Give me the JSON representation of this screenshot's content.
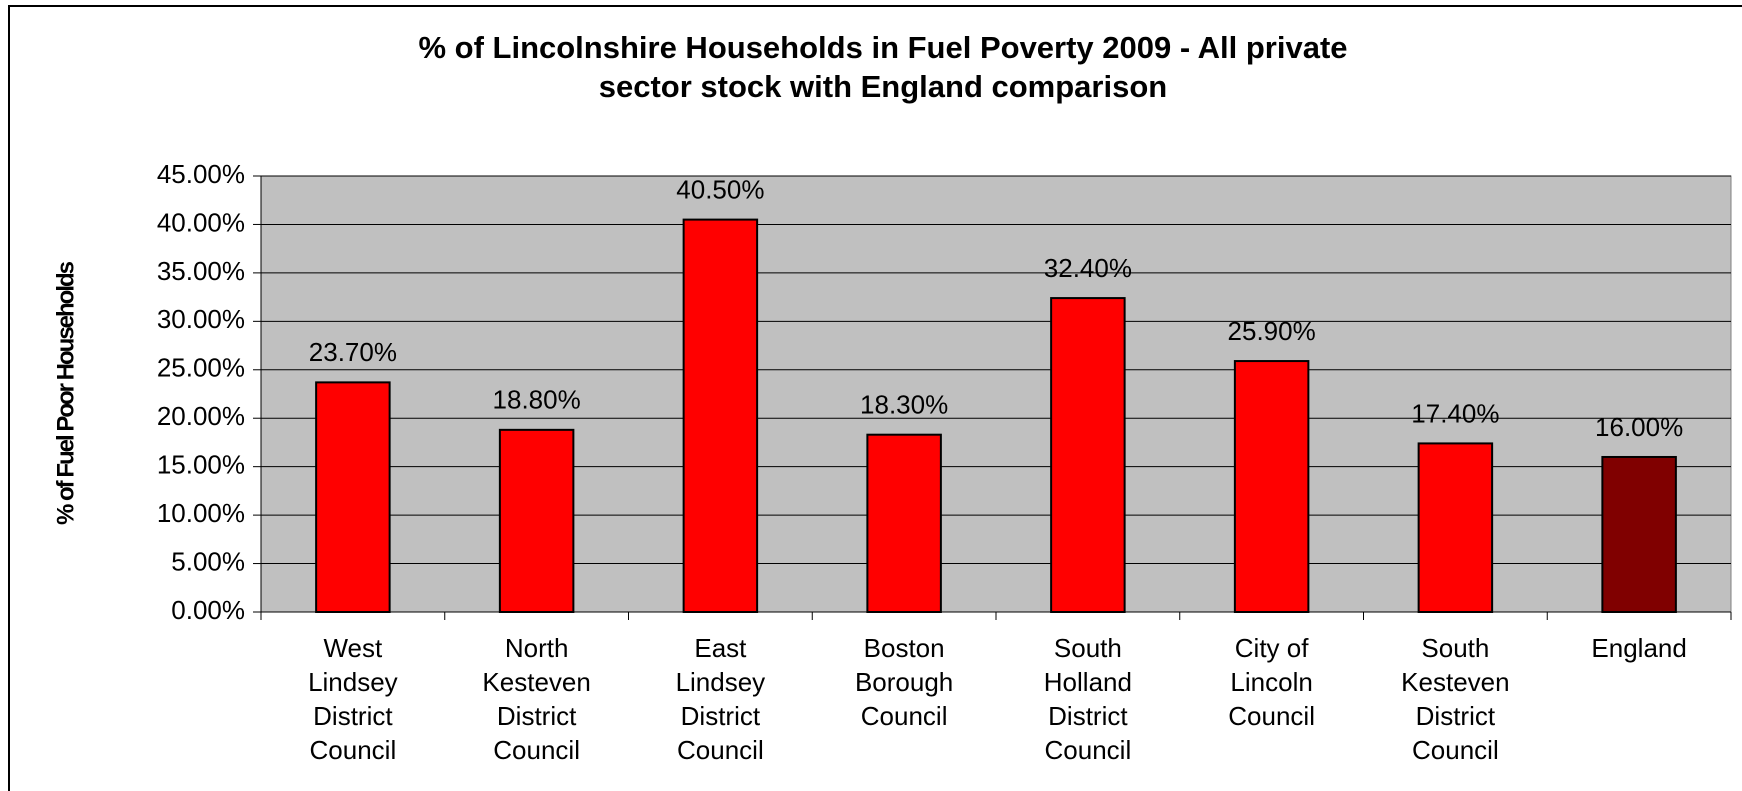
{
  "chart_data": {
    "type": "bar",
    "title": [
      "% of Lincolnshire Households in Fuel Poverty 2009 - All private",
      "sector stock with England comparison"
    ],
    "ylabel": "% of Fuel Poor Households",
    "categories": [
      [
        "West",
        "Lindsey",
        "District",
        "Council"
      ],
      [
        "North",
        "Kesteven",
        "District",
        "Council"
      ],
      [
        "East",
        "Lindsey",
        "District",
        "Council"
      ],
      [
        "Boston",
        "Borough",
        "Council"
      ],
      [
        "South",
        "Holland",
        "District",
        "Council"
      ],
      [
        "City of",
        "Lincoln",
        "Council"
      ],
      [
        "South",
        "Kesteven",
        "District",
        "Council"
      ],
      [
        "England"
      ]
    ],
    "values": [
      23.7,
      18.8,
      40.5,
      18.3,
      32.4,
      25.9,
      17.4,
      16.0
    ],
    "value_labels": [
      "23.70%",
      "18.80%",
      "40.50%",
      "18.30%",
      "32.40%",
      "25.90%",
      "17.40%",
      "16.00%"
    ],
    "colors": [
      "#ff0000",
      "#ff0000",
      "#ff0000",
      "#ff0000",
      "#ff0000",
      "#ff0000",
      "#ff0000",
      "#800000"
    ],
    "ylim": [
      0,
      45
    ],
    "yticks": [
      {
        "value": 0,
        "label": "0.00%"
      },
      {
        "value": 5,
        "label": "5.00%"
      },
      {
        "value": 10,
        "label": "10.00%"
      },
      {
        "value": 15,
        "label": "15.00%"
      },
      {
        "value": 20,
        "label": "20.00%"
      },
      {
        "value": 25,
        "label": "25.00%"
      },
      {
        "value": 30,
        "label": "30.00%"
      },
      {
        "value": 35,
        "label": "35.00%"
      },
      {
        "value": 40,
        "label": "40.00%"
      },
      {
        "value": 45,
        "label": "45.00%"
      }
    ],
    "grid": true
  }
}
